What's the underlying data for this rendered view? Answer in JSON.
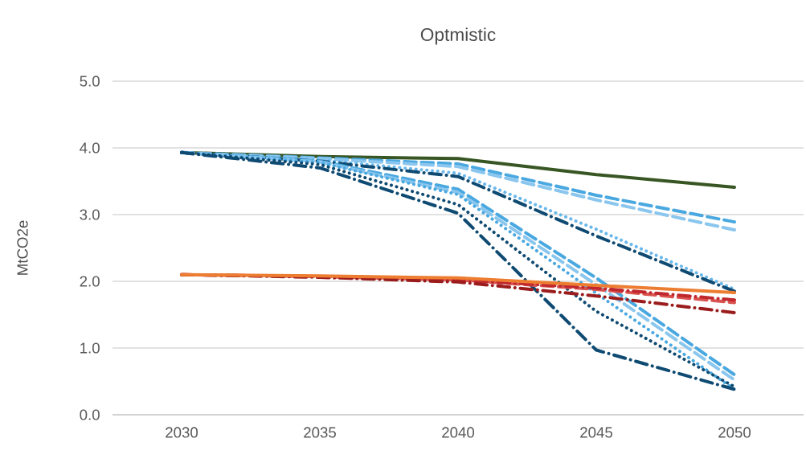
{
  "chart_data": {
    "type": "line",
    "title": "Optmistic",
    "ylabel": "MtCO2e",
    "categories": [
      "2030",
      "2035",
      "2040",
      "2045",
      "2050"
    ],
    "ylim": [
      0,
      5
    ],
    "yticks": [
      {
        "value": 0,
        "label": "0.0"
      },
      {
        "value": 1,
        "label": "1.0"
      },
      {
        "value": 2,
        "label": "2.0"
      },
      {
        "value": 3,
        "label": "3.0"
      },
      {
        "value": 4,
        "label": "4.0"
      },
      {
        "value": 5,
        "label": "5.0"
      }
    ],
    "grid": "y",
    "legend": false,
    "marker": "none",
    "series": [
      {
        "color": "#375623",
        "line_style": "solid",
        "values": [
          3.93,
          3.87,
          3.84,
          3.6,
          3.41
        ]
      },
      {
        "color": "#4aa8e0",
        "line_style": "dashed",
        "values": [
          3.93,
          3.85,
          3.76,
          3.29,
          2.89
        ]
      },
      {
        "color": "#8ac6ee",
        "line_style": "dashed",
        "values": [
          3.93,
          3.84,
          3.72,
          3.22,
          2.77
        ]
      },
      {
        "color": "#6ab8ea",
        "line_style": "dotted",
        "values": [
          3.93,
          3.82,
          3.62,
          2.78,
          1.88
        ]
      },
      {
        "color": "#0e4a72",
        "line_style": "dashdot",
        "values": [
          3.93,
          3.8,
          3.57,
          2.68,
          1.85
        ]
      },
      {
        "color": "#4aa8e0",
        "line_style": "dashed",
        "values": [
          3.93,
          3.8,
          3.38,
          2.05,
          0.6
        ]
      },
      {
        "color": "#8ac6ee",
        "line_style": "dashed",
        "values": [
          3.93,
          3.79,
          3.33,
          1.95,
          0.52
        ]
      },
      {
        "color": "#4aa8e0",
        "line_style": "dotted",
        "values": [
          3.93,
          3.78,
          3.3,
          1.82,
          0.38
        ]
      },
      {
        "color": "#0e4a72",
        "line_style": "dotted",
        "values": [
          3.93,
          3.75,
          3.15,
          1.55,
          0.42
        ]
      },
      {
        "color": "#0e4a72",
        "line_style": "dashdot",
        "values": [
          3.93,
          3.7,
          3.02,
          0.97,
          0.38
        ]
      },
      {
        "color": "#d9534f",
        "line_style": "dashed",
        "values": [
          2.1,
          2.07,
          2.02,
          1.88,
          1.68
        ]
      },
      {
        "color": "#c0282d",
        "line_style": "dashdot",
        "values": [
          2.1,
          2.07,
          2.02,
          1.9,
          1.72
        ]
      },
      {
        "color": "#9b1c1c",
        "line_style": "dashdot",
        "values": [
          2.1,
          2.06,
          1.99,
          1.78,
          1.53
        ]
      },
      {
        "color": "#ed7d31",
        "line_style": "solid",
        "values": [
          2.1,
          2.08,
          2.05,
          1.94,
          1.83
        ]
      }
    ]
  }
}
